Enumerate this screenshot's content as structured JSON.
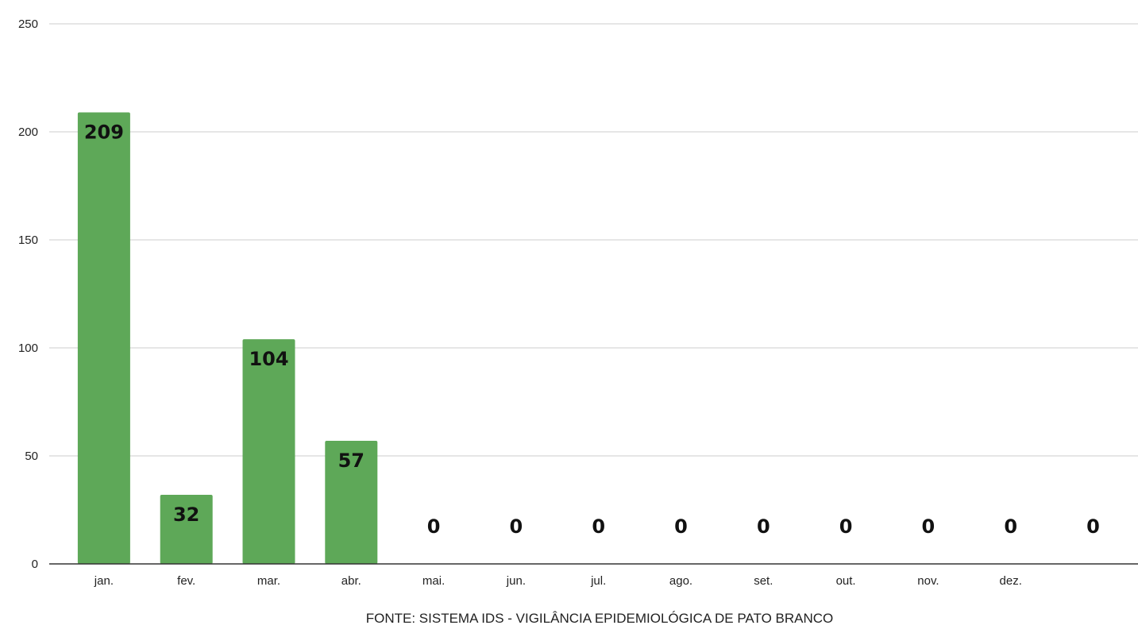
{
  "chart_data": {
    "type": "bar",
    "categories": [
      "jan.",
      "fev.",
      "mar.",
      "abr.",
      "mai.",
      "jun.",
      "jul.",
      "ago.",
      "set.",
      "out.",
      "nov.",
      "dez.",
      ""
    ],
    "values": [
      209,
      32,
      104,
      57,
      0,
      0,
      0,
      0,
      0,
      0,
      0,
      0,
      0
    ],
    "ylim": [
      0,
      250
    ],
    "yticks": [
      0,
      50,
      100,
      150,
      200,
      250
    ],
    "grid": true,
    "bar_color": "#5ea858",
    "gridline_color": "#cccccc",
    "baseline_color": "#333333",
    "source": "FONTE: SISTEMA IDS - VIGILÂNCIA EPIDEMIOLÓGICA DE PATO BRANCO"
  }
}
